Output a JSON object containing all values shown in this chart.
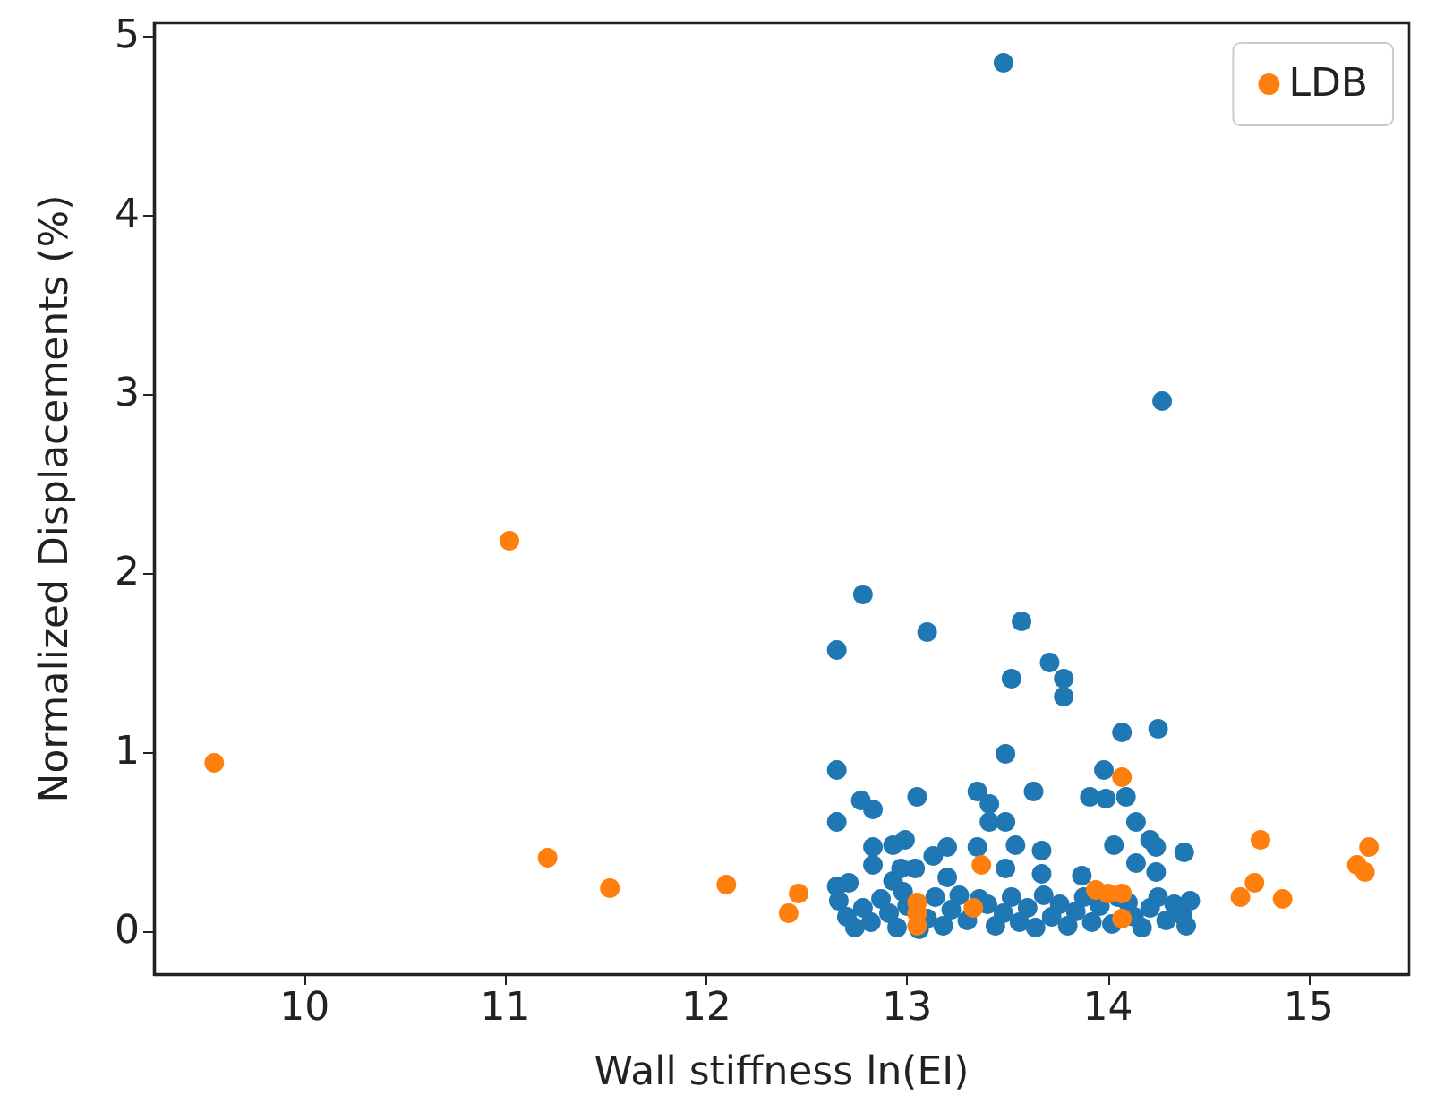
{
  "chart_data": {
    "type": "scatter",
    "xlabel": "Wall stiffness ln(EI)",
    "ylabel": "Normalized Displacements (%)",
    "xlim": [
      9.25,
      15.5
    ],
    "ylim": [
      -0.24,
      5.07
    ],
    "xticks": [
      10,
      11,
      12,
      13,
      14,
      15
    ],
    "yticks": [
      0,
      1,
      2,
      3,
      4,
      5
    ],
    "grid": false,
    "legend": "top right",
    "marker": "circle",
    "series": [
      {
        "color": "#1f77b4",
        "x": [
          13.48,
          14.27,
          12.78,
          12.65,
          13.1,
          13.57,
          13.52,
          13.71,
          13.78,
          13.78,
          14.07,
          14.25,
          13.49,
          12.65,
          13.98,
          12.65,
          12.77,
          12.83,
          13.05,
          13.35,
          13.41,
          13.63,
          13.91,
          13.99,
          14.09,
          13.41,
          13.49,
          14.14,
          14.14,
          14.38,
          14.24,
          14.21,
          14.03,
          14.24,
          13.87,
          13.67,
          13.54,
          13.35,
          13.2,
          13.13,
          12.99,
          12.93,
          12.83,
          12.83,
          12.97,
          13.04,
          13.49,
          13.67,
          12.65,
          12.71,
          12.93,
          13.2,
          12.66,
          12.7,
          12.74,
          12.78,
          12.82,
          12.87,
          12.91,
          12.95,
          13.0,
          13.1,
          13.14,
          13.18,
          13.22,
          13.26,
          13.3,
          13.4,
          13.44,
          13.48,
          13.52,
          13.56,
          13.6,
          13.64,
          13.68,
          13.72,
          13.76,
          13.8,
          13.84,
          13.88,
          13.92,
          13.96,
          14.02,
          14.1,
          14.13,
          14.17,
          14.21,
          14.25,
          14.29,
          14.33,
          14.37,
          14.41,
          14.39,
          13.06,
          13.36,
          12.98,
          14.05
        ],
        "values": [
          4.85,
          2.96,
          1.88,
          1.57,
          1.67,
          1.73,
          1.41,
          1.5,
          1.41,
          1.31,
          1.11,
          1.13,
          0.99,
          0.9,
          0.9,
          0.61,
          0.73,
          0.68,
          0.75,
          0.78,
          0.71,
          0.78,
          0.75,
          0.74,
          0.75,
          0.61,
          0.61,
          0.61,
          0.38,
          0.44,
          0.47,
          0.51,
          0.48,
          0.33,
          0.31,
          0.45,
          0.48,
          0.47,
          0.47,
          0.42,
          0.51,
          0.48,
          0.47,
          0.37,
          0.35,
          0.35,
          0.35,
          0.32,
          0.25,
          0.27,
          0.28,
          0.3,
          0.17,
          0.08,
          0.02,
          0.13,
          0.05,
          0.18,
          0.1,
          0.02,
          0.14,
          0.07,
          0.19,
          0.03,
          0.12,
          0.2,
          0.06,
          0.15,
          0.03,
          0.1,
          0.19,
          0.05,
          0.13,
          0.02,
          0.2,
          0.08,
          0.15,
          0.03,
          0.11,
          0.19,
          0.05,
          0.14,
          0.04,
          0.16,
          0.08,
          0.02,
          0.13,
          0.19,
          0.06,
          0.15,
          0.09,
          0.17,
          0.03,
          0.01,
          0.18,
          0.22,
          0.19
        ]
      },
      {
        "name": "LDB",
        "color": "#ff7f0e",
        "x": [
          9.55,
          11.02,
          11.21,
          11.52,
          12.1,
          12.46,
          12.41,
          14.07,
          13.37,
          13.33,
          13.05,
          13.05,
          13.05,
          13.94,
          14.0,
          14.07,
          14.07,
          14.76,
          14.73,
          14.66,
          14.87,
          15.3,
          15.24,
          15.28
        ],
        "values": [
          0.94,
          2.18,
          0.41,
          0.24,
          0.26,
          0.21,
          0.1,
          0.86,
          0.37,
          0.13,
          0.16,
          0.03,
          0.1,
          0.23,
          0.21,
          0.21,
          0.07,
          0.51,
          0.27,
          0.19,
          0.18,
          0.47,
          0.37,
          0.33
        ]
      }
    ]
  }
}
